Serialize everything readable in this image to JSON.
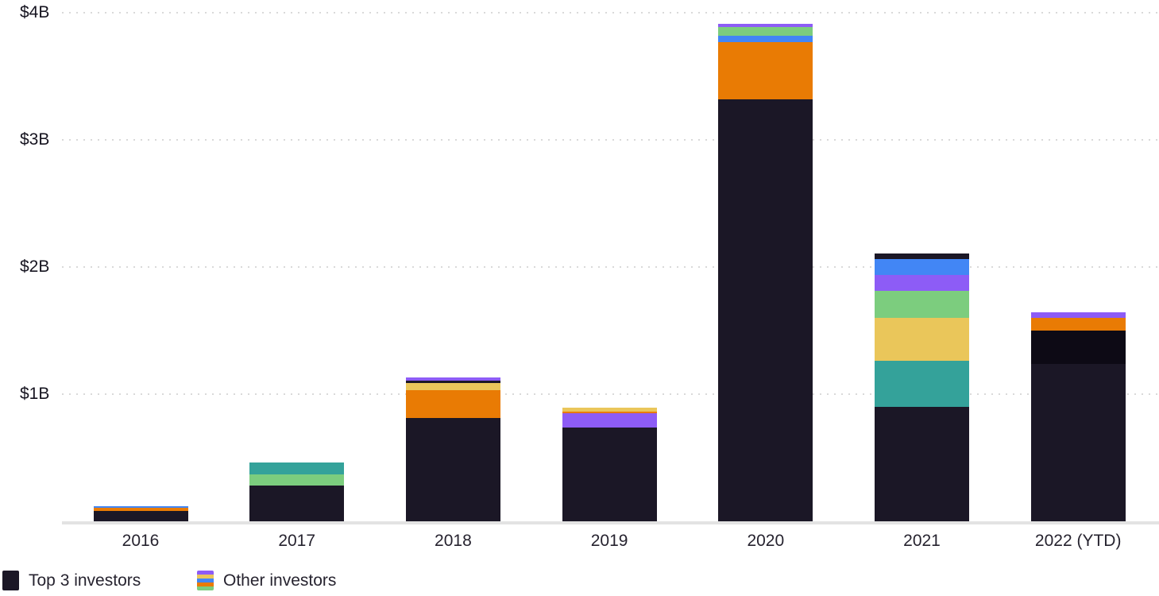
{
  "y_axis": {
    "ticks": [
      {
        "label": "$4B",
        "value": 4
      },
      {
        "label": "$3B",
        "value": 3
      },
      {
        "label": "$2B",
        "value": 2
      },
      {
        "label": "$1B",
        "value": 1
      }
    ]
  },
  "legend": {
    "items": [
      {
        "label": "Top 3 investors",
        "swatch": "solid",
        "color": "#1b1726"
      },
      {
        "label": "Other investors",
        "swatch": "stripes",
        "colors": [
          "#8d5cf6",
          "#eac65a",
          "#4286f5",
          "#e97b04",
          "#7ccd7e"
        ]
      }
    ]
  },
  "chart_data": {
    "type": "bar",
    "stacked": true,
    "unit": "USD billions ($B)",
    "ylim": [
      0,
      4
    ],
    "grid": "dotted horizontal",
    "legend_position": "bottom-left",
    "categories": [
      "2016",
      "2017",
      "2018",
      "2019",
      "2020",
      "2021",
      "2022 (YTD)"
    ],
    "colors": {
      "top3": "#1b1726",
      "orange": "#e97b04",
      "blue": "#4286f5",
      "teal": "#34a29a",
      "green": "#7ccd7e",
      "yellow": "#eac65a",
      "purple": "#8d5cf6",
      "near_black": "#0d0a15"
    },
    "segments_note": "segments listed bottom-to-top, values in $ billions",
    "bars": [
      {
        "category": "2016",
        "total": 0.12,
        "segments": [
          {
            "name": "top3",
            "value": 0.08
          },
          {
            "name": "orange",
            "value": 0.025
          },
          {
            "name": "blue",
            "value": 0.015
          }
        ]
      },
      {
        "category": "2017",
        "total": 0.46,
        "segments": [
          {
            "name": "top3",
            "value": 0.28
          },
          {
            "name": "green",
            "value": 0.09
          },
          {
            "name": "teal",
            "value": 0.09
          }
        ]
      },
      {
        "category": "2018",
        "total": 1.13,
        "segments": [
          {
            "name": "top3",
            "value": 0.81
          },
          {
            "name": "orange",
            "value": 0.22
          },
          {
            "name": "yellow",
            "value": 0.06
          },
          {
            "name": "top3",
            "value": 0.015
          },
          {
            "name": "purple",
            "value": 0.025
          }
        ]
      },
      {
        "category": "2019",
        "total": 0.9,
        "segments": [
          {
            "name": "top3",
            "value": 0.74
          },
          {
            "name": "purple",
            "value": 0.11
          },
          {
            "name": "orange",
            "value": 0.015
          },
          {
            "name": "yellow",
            "value": 0.03
          }
        ]
      },
      {
        "category": "2020",
        "total": 3.92,
        "segments": [
          {
            "name": "top3",
            "value": 3.32
          },
          {
            "name": "orange",
            "value": 0.45
          },
          {
            "name": "blue",
            "value": 0.05
          },
          {
            "name": "green",
            "value": 0.07
          },
          {
            "name": "purple",
            "value": 0.025
          }
        ]
      },
      {
        "category": "2021",
        "total": 2.11,
        "segments": [
          {
            "name": "top3",
            "value": 0.9
          },
          {
            "name": "teal",
            "value": 0.36
          },
          {
            "name": "yellow",
            "value": 0.34
          },
          {
            "name": "green",
            "value": 0.21
          },
          {
            "name": "purple",
            "value": 0.13
          },
          {
            "name": "blue",
            "value": 0.125
          },
          {
            "name": "top3",
            "value": 0.04
          }
        ]
      },
      {
        "category": "2022 (YTD)",
        "total": 1.65,
        "segments": [
          {
            "name": "top3",
            "value": 1.24
          },
          {
            "name": "near_black",
            "value": 0.26
          },
          {
            "name": "orange",
            "value": 0.1
          },
          {
            "name": "purple",
            "value": 0.045
          }
        ]
      }
    ]
  }
}
